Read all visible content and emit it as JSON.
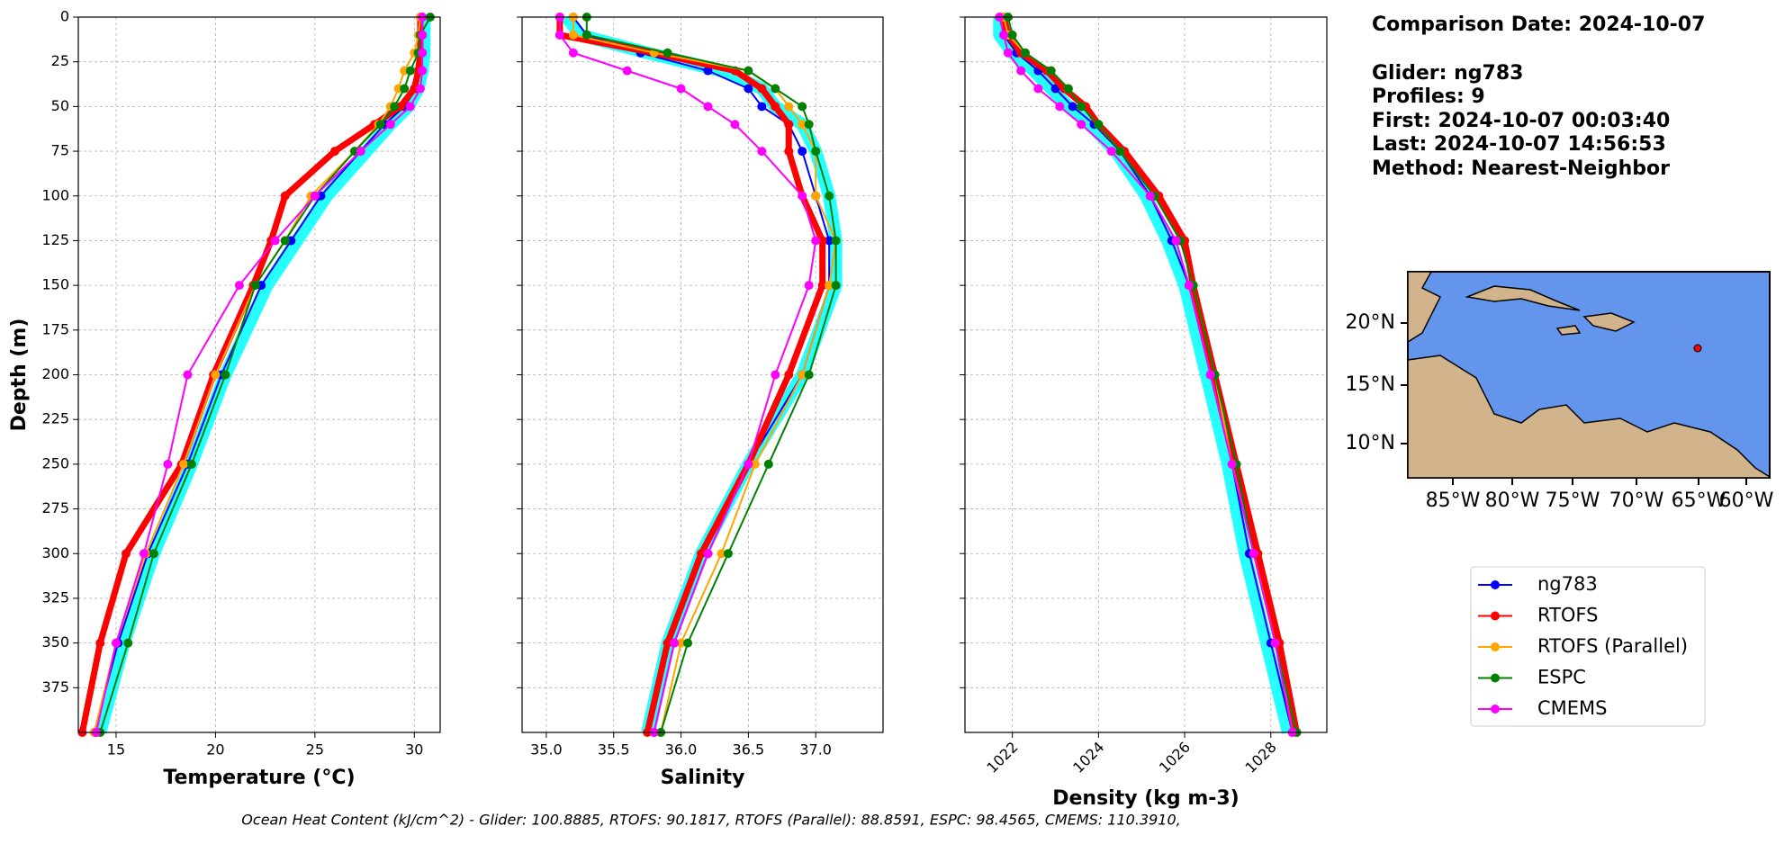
{
  "chart_data": [
    {
      "type": "line",
      "xlabel": "Temperature (°C)",
      "ylabel": "Depth (m)",
      "grid": true,
      "show_ytick_labels": true,
      "xlim": [
        13.1,
        31.3
      ],
      "xticks": [
        15,
        20,
        25,
        30
      ],
      "ylim": [
        400,
        0
      ],
      "yticks": [
        0,
        25,
        50,
        75,
        100,
        125,
        150,
        175,
        200,
        225,
        250,
        275,
        300,
        325,
        350,
        375
      ],
      "y": [
        0,
        10,
        20,
        30,
        40,
        50,
        60,
        75,
        100,
        125,
        150,
        200,
        250,
        300,
        350,
        400
      ],
      "series": [
        {
          "color": "#00ffff",
          "linewidth": 14,
          "values": [
            30.5,
            30.5,
            30.5,
            30.4,
            30.2,
            29.7,
            28.8,
            27.6,
            25.6,
            24.1,
            22.6,
            20.5,
            18.8,
            16.9,
            15.4,
            14.2
          ]
        },
        {
          "name": "ng783",
          "color": "#0000ff",
          "linewidth": 2,
          "values": [
            30.4,
            30.4,
            30.4,
            30.3,
            30.1,
            29.5,
            28.5,
            27.3,
            25.3,
            23.8,
            22.3,
            20.3,
            18.6,
            16.6,
            15.1,
            13.9
          ]
        },
        {
          "name": "RTOFS",
          "color": "#ff0000",
          "linewidth": 7,
          "values": [
            30.3,
            30.3,
            30.3,
            30.2,
            30.0,
            29.3,
            28.0,
            26.0,
            23.5,
            22.8,
            21.9,
            19.9,
            18.3,
            15.5,
            14.2,
            13.3
          ]
        },
        {
          "name": "RTOFS (Parallel)",
          "color": "#ffa500",
          "linewidth": 2,
          "values": [
            30.3,
            30.2,
            30.0,
            29.5,
            29.2,
            28.8,
            28.2,
            27.0,
            24.8,
            23.5,
            22.0,
            20.0,
            18.4,
            16.5,
            15.0,
            13.9
          ]
        },
        {
          "name": "ESPC",
          "color": "#008000",
          "linewidth": 2,
          "values": [
            30.8,
            30.3,
            30.2,
            29.8,
            29.5,
            29.0,
            28.3,
            27.0,
            25.0,
            23.5,
            22.0,
            20.5,
            18.8,
            16.9,
            15.6,
            14.2
          ]
        },
        {
          "name": "CMEMS",
          "color": "#ff00ff",
          "linewidth": 2,
          "values": [
            30.4,
            30.4,
            30.4,
            30.4,
            30.3,
            29.8,
            28.8,
            27.3,
            25.0,
            23.0,
            21.2,
            18.6,
            17.6,
            16.4,
            15.0,
            14.0
          ]
        }
      ]
    },
    {
      "type": "line",
      "xlabel": "Salinity",
      "grid": true,
      "show_ytick_labels": false,
      "xlim": [
        34.82,
        37.5
      ],
      "xticks": [
        {
          "value": 35,
          "label": "35.0"
        },
        35.5,
        {
          "value": 36,
          "label": "36.0"
        },
        36.5,
        {
          "value": 37,
          "label": "37.0"
        }
      ],
      "ylim": [
        400,
        0
      ],
      "yticks": [
        0,
        25,
        50,
        75,
        100,
        125,
        150,
        175,
        200,
        225,
        250,
        275,
        300,
        325,
        350,
        375
      ],
      "y": [
        0,
        10,
        20,
        30,
        40,
        50,
        60,
        75,
        100,
        125,
        150,
        200,
        250,
        300,
        350,
        400
      ],
      "series": [
        {
          "color": "#00ffff",
          "linewidth": 14,
          "values": [
            35.15,
            35.25,
            35.75,
            36.3,
            36.6,
            36.7,
            36.9,
            37.0,
            37.1,
            37.15,
            37.15,
            36.9,
            36.5,
            36.15,
            35.9,
            35.75
          ]
        },
        {
          "name": "ng783",
          "color": "#0000ff",
          "linewidth": 2,
          "values": [
            35.2,
            35.3,
            35.7,
            36.2,
            36.5,
            36.6,
            36.8,
            36.9,
            37.0,
            37.1,
            37.1,
            36.9,
            36.5,
            36.2,
            35.95,
            35.8
          ]
        },
        {
          "name": "RTOFS",
          "color": "#ff0000",
          "linewidth": 7,
          "values": [
            35.1,
            35.1,
            35.8,
            36.4,
            36.6,
            36.7,
            36.8,
            36.8,
            36.9,
            37.05,
            37.05,
            36.8,
            36.5,
            36.15,
            35.9,
            35.75
          ]
        },
        {
          "name": "RTOFS (Parallel)",
          "color": "#ffa500",
          "linewidth": 2,
          "values": [
            35.2,
            35.2,
            35.8,
            36.5,
            36.7,
            36.8,
            36.9,
            37.0,
            37.0,
            37.15,
            37.1,
            36.9,
            36.55,
            36.3,
            36.0,
            35.85
          ]
        },
        {
          "name": "ESPC",
          "color": "#008000",
          "linewidth": 2,
          "values": [
            35.3,
            35.3,
            35.9,
            36.5,
            36.7,
            36.9,
            36.95,
            37.0,
            37.1,
            37.15,
            37.15,
            36.95,
            36.65,
            36.35,
            36.05,
            35.85
          ]
        },
        {
          "name": "CMEMS",
          "color": "#ff00ff",
          "linewidth": 2,
          "values": [
            35.1,
            35.1,
            35.2,
            35.6,
            36.0,
            36.2,
            36.4,
            36.6,
            36.9,
            37.0,
            36.95,
            36.7,
            36.5,
            36.2,
            35.95,
            35.8
          ]
        }
      ]
    },
    {
      "type": "line",
      "xlabel": "Density (kg m-3)",
      "grid": true,
      "show_ytick_labels": false,
      "xtick_rotation": 45,
      "xlim": [
        1020.9,
        1029.3
      ],
      "xticks": [
        1022,
        1024,
        1026,
        1028
      ],
      "ylim": [
        400,
        0
      ],
      "yticks": [
        0,
        25,
        50,
        75,
        100,
        125,
        150,
        175,
        200,
        225,
        250,
        275,
        300,
        325,
        350,
        375
      ],
      "y": [
        0,
        10,
        20,
        30,
        40,
        50,
        60,
        75,
        100,
        125,
        150,
        200,
        250,
        300,
        350,
        400
      ],
      "series": [
        {
          "color": "#00ffff",
          "linewidth": 14,
          "values": [
            1021.7,
            1021.7,
            1022.0,
            1022.5,
            1022.9,
            1023.3,
            1023.8,
            1024.4,
            1025.1,
            1025.6,
            1026.0,
            1026.5,
            1027.0,
            1027.4,
            1027.9,
            1028.4
          ]
        },
        {
          "name": "ng783",
          "color": "#0000ff",
          "linewidth": 2,
          "values": [
            1021.8,
            1021.8,
            1022.1,
            1022.6,
            1023.0,
            1023.4,
            1023.9,
            1024.5,
            1025.2,
            1025.7,
            1026.1,
            1026.6,
            1027.1,
            1027.5,
            1028.0,
            1028.5
          ]
        },
        {
          "name": "RTOFS",
          "color": "#ff0000",
          "linewidth": 7,
          "values": [
            1021.8,
            1021.9,
            1022.2,
            1022.8,
            1023.2,
            1023.7,
            1024.0,
            1024.6,
            1025.4,
            1026.0,
            1026.2,
            1026.7,
            1027.2,
            1027.7,
            1028.2,
            1028.6
          ]
        },
        {
          "name": "RTOFS (Parallel)",
          "color": "#ffa500",
          "linewidth": 2,
          "values": [
            1021.8,
            1021.9,
            1022.3,
            1022.9,
            1023.3,
            1023.6,
            1024.0,
            1024.5,
            1025.3,
            1025.9,
            1026.2,
            1026.7,
            1027.1,
            1027.6,
            1028.1,
            1028.6
          ]
        },
        {
          "name": "ESPC",
          "color": "#008000",
          "linewidth": 2,
          "values": [
            1021.9,
            1022.0,
            1022.3,
            1022.9,
            1023.3,
            1023.6,
            1024.0,
            1024.5,
            1025.3,
            1025.9,
            1026.2,
            1026.7,
            1027.2,
            1027.6,
            1028.1,
            1028.6
          ]
        },
        {
          "name": "CMEMS",
          "color": "#ff00ff",
          "linewidth": 2,
          "values": [
            1021.7,
            1021.8,
            1021.9,
            1022.2,
            1022.6,
            1023.1,
            1023.6,
            1024.3,
            1025.2,
            1025.8,
            1026.1,
            1026.6,
            1027.1,
            1027.6,
            1028.1,
            1028.5
          ]
        }
      ]
    }
  ],
  "info": [
    "Comparison Date: 2024-10-07",
    "Glider: ng783",
    "Profiles: 9",
    "First: 2024-10-07 00:03:40",
    "Last: 2024-10-07 14:56:53",
    "Method: Nearest-Neighbor"
  ],
  "map": {
    "lat_labels": [
      "20°N",
      "15°N",
      "10°N"
    ],
    "lon_labels": [
      "85°W",
      "80°W",
      "75°W",
      "70°W",
      "65°W",
      "60°W"
    ]
  },
  "footer": "Ocean Heat Content (kJ/cm^2) - Glider: 100.8885,  RTOFS: 90.1817,  RTOFS (Parallel): 88.8591,  ESPC: 98.4565,  CMEMS: 110.3910,"
}
